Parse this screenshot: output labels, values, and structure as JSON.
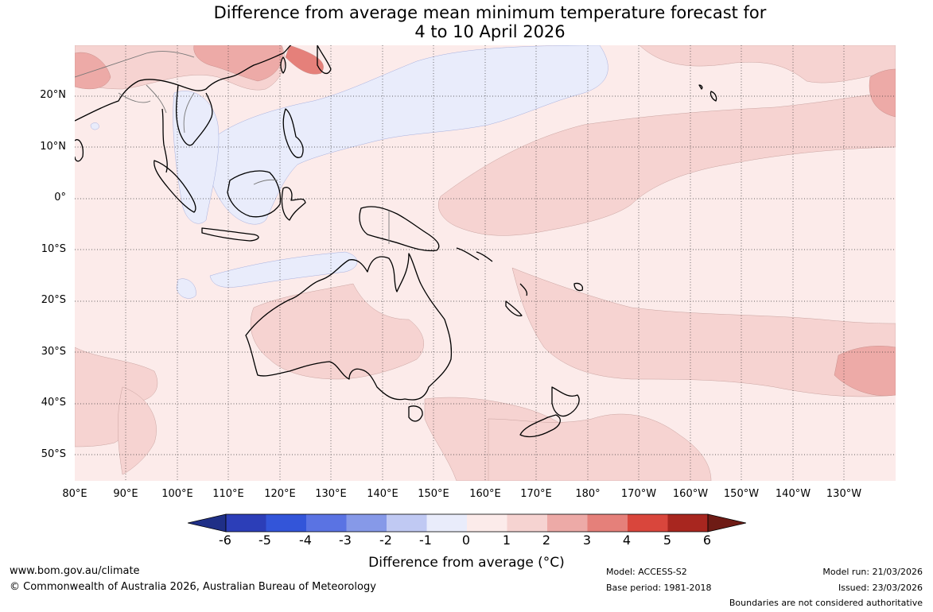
{
  "title": {
    "line1": "Difference from average mean minimum temperature forecast for",
    "line2": "4 to 10 April 2026"
  },
  "map": {
    "lat_labels": [
      "20°N",
      "10°N",
      "0°",
      "10°S",
      "20°S",
      "30°S",
      "40°S",
      "50°S"
    ],
    "lon_labels": [
      "80°E",
      "90°E",
      "100°E",
      "110°E",
      "120°E",
      "130°E",
      "140°E",
      "150°E",
      "160°E",
      "170°E",
      "180°",
      "170°W",
      "160°W",
      "150°W",
      "140°W",
      "130°W"
    ]
  },
  "colorbar": {
    "ticks": [
      "-6",
      "-5",
      "-4",
      "-3",
      "-2",
      "-1",
      "0",
      "1",
      "2",
      "3",
      "4",
      "5",
      "6"
    ],
    "title": "Difference from average (°C)",
    "colors": [
      "#1f2f87",
      "#2c3eb8",
      "#3355d9",
      "#5a73e3",
      "#8699e8",
      "#c0c9f3",
      "#e9ecfb",
      "#fcebea",
      "#f6d3d1",
      "#edaaa7",
      "#e5807a",
      "#d9463c",
      "#a8261f",
      "#6e1b15"
    ]
  },
  "footer": {
    "website": "www.bom.gov.au/climate",
    "copyright": "© Commonwealth of Australia 2026, Australian Bureau of Meteorology",
    "model": "Model: ACCESS-S2",
    "base_period": "Base period: 1981-2018",
    "model_run": "Model run: 21/03/2026",
    "issued": "Issued: 23/03/2026",
    "disclaimer": "Boundaries are not considered authoritative"
  }
}
